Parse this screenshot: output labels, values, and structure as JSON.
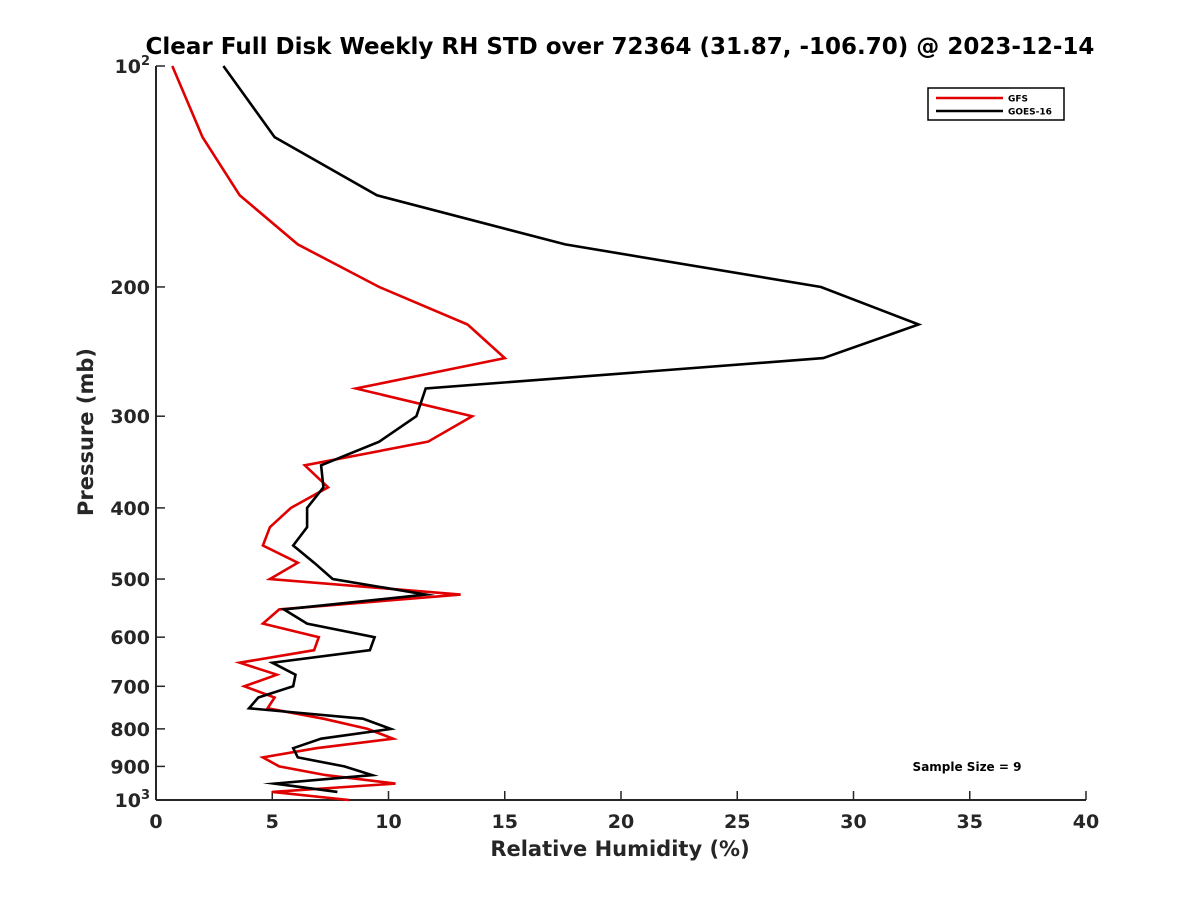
{
  "chart_data": {
    "type": "line",
    "title": "Clear Full Disk Weekly RH STD over 72364 (31.87, -106.70) @ 2023-12-14",
    "xlabel": "Relative Humidity (%)",
    "ylabel": "Pressure (mb)",
    "xlim": [
      0,
      40
    ],
    "ylim": [
      100,
      1000
    ],
    "y_scale": "log",
    "y_reversed": true,
    "grid": false,
    "legend_position": "top-right",
    "annotation": "Sample Size = 9",
    "xticks": [
      0,
      5,
      10,
      15,
      20,
      25,
      30,
      35,
      40
    ],
    "xtick_labels": [
      "0",
      "5",
      "10",
      "15",
      "20",
      "25",
      "30",
      "35",
      "40"
    ],
    "yticks": [
      {
        "value": 100,
        "base": "10",
        "exp": "2",
        "label": ""
      },
      {
        "value": 200,
        "label": "200"
      },
      {
        "value": 300,
        "label": "300"
      },
      {
        "value": 400,
        "label": "400"
      },
      {
        "value": 500,
        "label": "500"
      },
      {
        "value": 600,
        "label": "600"
      },
      {
        "value": 700,
        "label": "700"
      },
      {
        "value": 800,
        "label": "800"
      },
      {
        "value": 900,
        "label": "900"
      },
      {
        "value": 1000,
        "base": "10",
        "exp": "3",
        "label": ""
      }
    ],
    "series": [
      {
        "name": "GFS",
        "color": "#e00000",
        "points": [
          [
            0.7,
            100
          ],
          [
            2.0,
            125
          ],
          [
            3.6,
            150
          ],
          [
            6.1,
            175
          ],
          [
            9.6,
            200
          ],
          [
            13.4,
            225
          ],
          [
            15.0,
            250
          ],
          [
            8.6,
            275
          ],
          [
            13.6,
            300
          ],
          [
            11.7,
            325
          ],
          [
            6.4,
            350
          ],
          [
            7.4,
            375
          ],
          [
            5.8,
            400
          ],
          [
            4.9,
            425
          ],
          [
            4.6,
            450
          ],
          [
            6.1,
            475
          ],
          [
            4.9,
            500
          ],
          [
            13.1,
            525
          ],
          [
            5.3,
            550
          ],
          [
            4.6,
            575
          ],
          [
            7.0,
            600
          ],
          [
            6.8,
            625
          ],
          [
            3.6,
            650
          ],
          [
            5.2,
            675
          ],
          [
            3.8,
            700
          ],
          [
            5.1,
            725
          ],
          [
            4.8,
            750
          ],
          [
            7.2,
            775
          ],
          [
            9.1,
            800
          ],
          [
            10.2,
            825
          ],
          [
            6.9,
            850
          ],
          [
            4.6,
            875
          ],
          [
            5.3,
            900
          ],
          [
            7.3,
            925
          ],
          [
            10.3,
            950
          ],
          [
            5.0,
            975
          ],
          [
            8.3,
            1000
          ]
        ]
      },
      {
        "name": "GOES-16",
        "color": "#000000",
        "points": [
          [
            2.9,
            100
          ],
          [
            5.1,
            125
          ],
          [
            9.5,
            150
          ],
          [
            17.6,
            175
          ],
          [
            28.6,
            200
          ],
          [
            32.8,
            225
          ],
          [
            28.7,
            250
          ],
          [
            11.6,
            275
          ],
          [
            11.2,
            300
          ],
          [
            9.6,
            325
          ],
          [
            7.1,
            350
          ],
          [
            7.2,
            375
          ],
          [
            6.5,
            400
          ],
          [
            6.5,
            425
          ],
          [
            5.9,
            450
          ],
          [
            6.8,
            475
          ],
          [
            7.6,
            500
          ],
          [
            11.6,
            525
          ],
          [
            5.5,
            550
          ],
          [
            6.5,
            575
          ],
          [
            9.4,
            600
          ],
          [
            9.2,
            625
          ],
          [
            5.0,
            650
          ],
          [
            6.0,
            675
          ],
          [
            5.9,
            700
          ],
          [
            4.4,
            725
          ],
          [
            4.0,
            750
          ],
          [
            8.9,
            775
          ],
          [
            10.1,
            800
          ],
          [
            7.1,
            825
          ],
          [
            5.9,
            850
          ],
          [
            6.1,
            875
          ],
          [
            8.1,
            900
          ],
          [
            9.3,
            925
          ],
          [
            5.1,
            950
          ],
          [
            7.8,
            975
          ]
        ]
      }
    ]
  }
}
